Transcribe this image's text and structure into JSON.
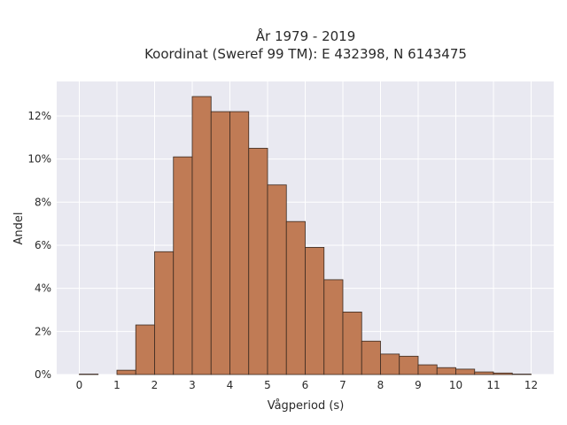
{
  "chart_data": {
    "type": "bar",
    "title_line1": "År 1979 - 2019",
    "title_line2": "Koordinat (Sweref 99 TM): E 432398, N 6143475",
    "xlabel": "Vågperiod (s)",
    "ylabel": "Andel",
    "xlim": [
      -0.6,
      12.6
    ],
    "ylim": [
      0,
      13.6
    ],
    "bin_width": 0.5,
    "x_ticks": [
      0,
      1,
      2,
      3,
      4,
      5,
      6,
      7,
      8,
      9,
      10,
      11,
      12
    ],
    "x_tick_labels": [
      "0",
      "1",
      "2",
      "3",
      "4",
      "5",
      "6",
      "7",
      "8",
      "9",
      "10",
      "11",
      "12"
    ],
    "y_ticks": [
      0,
      2,
      4,
      6,
      8,
      10,
      12
    ],
    "y_tick_labels": [
      "0%",
      "2%",
      "4%",
      "6%",
      "8%",
      "10%",
      "12%"
    ],
    "grid": true,
    "bar_color": "#c07b55",
    "edge_color": "#3a2a20",
    "background_color": "#e9e9f1",
    "bins_start": [
      0,
      0.5,
      1,
      1.5,
      2,
      2.5,
      3,
      3.5,
      4,
      4.5,
      5,
      5.5,
      6,
      6.5,
      7,
      7.5,
      8,
      8.5,
      9,
      9.5,
      10,
      10.5,
      11,
      11.5
    ],
    "values": [
      0.02,
      0.0,
      0.2,
      2.3,
      5.7,
      10.1,
      12.9,
      12.2,
      12.2,
      10.5,
      8.8,
      7.1,
      5.9,
      4.4,
      2.9,
      1.55,
      0.95,
      0.85,
      0.45,
      0.32,
      0.25,
      0.12,
      0.07,
      0.02
    ]
  }
}
